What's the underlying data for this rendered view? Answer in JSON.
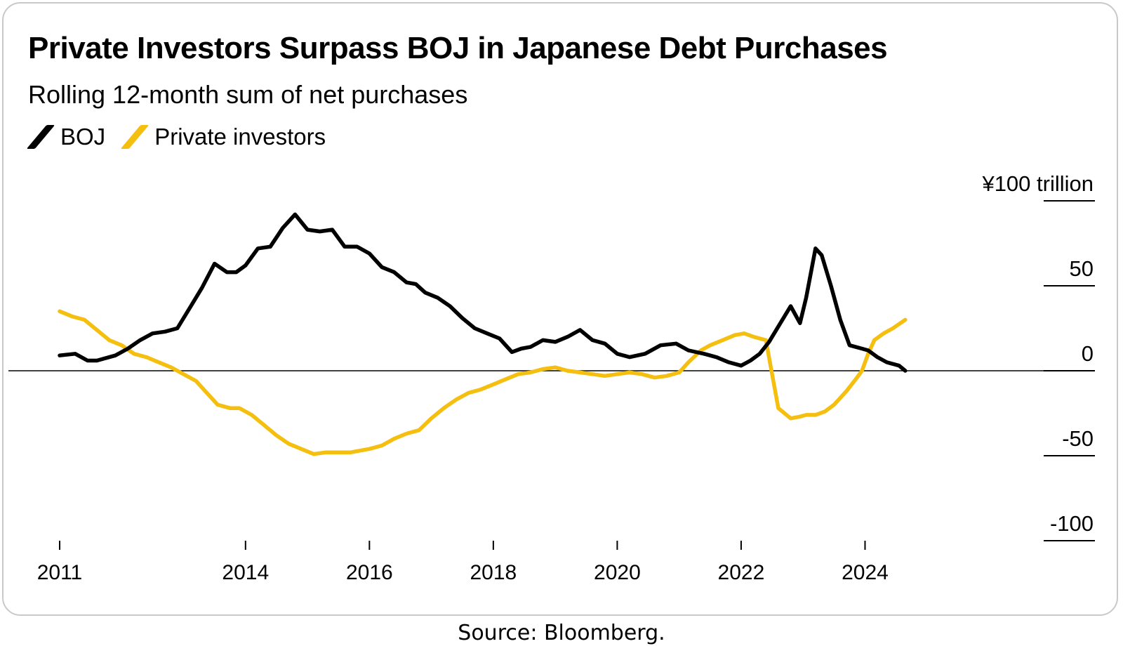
{
  "title": "Private Investors Surpass BOJ in Japanese Debt Purchases",
  "subtitle": "Rolling 12-month sum of net purchases",
  "source": "Source: Bloomberg.",
  "colors": {
    "boj": "#000000",
    "private": "#f5bf0f",
    "grid": "#000000",
    "border": "#c9c9c9"
  },
  "chart_data": {
    "type": "line",
    "title": "Private Investors Surpass BOJ in Japanese Debt Purchases",
    "subtitle": "Rolling 12-month sum of net purchases",
    "legend_position": "top-left",
    "yunit_label": "¥100 trillion",
    "ylim": [
      -100,
      100
    ],
    "yticks": [
      100,
      50,
      0,
      -50,
      -100
    ],
    "ytick_labels": [
      "¥100 trillion",
      "50",
      "0",
      "-50",
      "-100"
    ],
    "xlim": [
      2011.0,
      2026.0
    ],
    "xticks": [
      2011,
      2014,
      2016,
      2018,
      2020,
      2022,
      2024
    ],
    "xtick_labels": [
      "2011",
      "2014",
      "2016",
      "2018",
      "2020",
      "2022",
      "2024"
    ],
    "grid": "horizontal ticks at right only; zero baseline",
    "series": [
      {
        "name": "BOJ",
        "color": "#000000",
        "x": [
          2011.0,
          2011.25,
          2011.45,
          2011.6,
          2011.9,
          2012.1,
          2012.3,
          2012.5,
          2012.7,
          2012.9,
          2013.1,
          2013.3,
          2013.5,
          2013.7,
          2013.85,
          2014.0,
          2014.2,
          2014.4,
          2014.6,
          2014.8,
          2015.0,
          2015.2,
          2015.4,
          2015.6,
          2015.8,
          2016.0,
          2016.2,
          2016.4,
          2016.6,
          2016.75,
          2016.9,
          2017.1,
          2017.3,
          2017.5,
          2017.7,
          2017.9,
          2018.1,
          2018.3,
          2018.45,
          2018.6,
          2018.8,
          2019.0,
          2019.2,
          2019.4,
          2019.6,
          2019.8,
          2020.0,
          2020.2,
          2020.45,
          2020.7,
          2020.95,
          2021.15,
          2021.4,
          2021.6,
          2021.8,
          2022.0,
          2022.15,
          2022.3,
          2022.45,
          2022.6,
          2022.8,
          2022.95,
          2023.05,
          2023.2,
          2023.3,
          2023.45,
          2023.6,
          2023.75,
          2023.95,
          2024.05,
          2024.2,
          2024.35,
          2024.55,
          2024.65
        ],
        "y": [
          9,
          10,
          6,
          6,
          9,
          13,
          18,
          22,
          23,
          25,
          37,
          49,
          63,
          58,
          58,
          62,
          72,
          73,
          84,
          92,
          83,
          82,
          83,
          73,
          73,
          69,
          61,
          58,
          52,
          51,
          46,
          43,
          38,
          31,
          25,
          22,
          19,
          11,
          13,
          14,
          18,
          17,
          20,
          24,
          18,
          16,
          10,
          8,
          10,
          15,
          16,
          12,
          10,
          8,
          5,
          3,
          6,
          10,
          17,
          26,
          38,
          28,
          43,
          72,
          68,
          50,
          30,
          15,
          13,
          12,
          8,
          5,
          3,
          0
        ]
      },
      {
        "name": "Private investors",
        "color": "#f5bf0f",
        "x": [
          2011.0,
          2011.2,
          2011.4,
          2011.6,
          2011.8,
          2012.0,
          2012.2,
          2012.4,
          2012.6,
          2012.8,
          2013.0,
          2013.2,
          2013.35,
          2013.55,
          2013.75,
          2013.9,
          2014.1,
          2014.3,
          2014.5,
          2014.7,
          2014.9,
          2015.1,
          2015.3,
          2015.5,
          2015.7,
          2015.85,
          2016.0,
          2016.2,
          2016.4,
          2016.6,
          2016.8,
          2017.0,
          2017.2,
          2017.4,
          2017.6,
          2017.8,
          2018.0,
          2018.2,
          2018.4,
          2018.6,
          2018.8,
          2019.0,
          2019.2,
          2019.4,
          2019.6,
          2019.8,
          2020.0,
          2020.2,
          2020.4,
          2020.6,
          2020.8,
          2021.0,
          2021.15,
          2021.35,
          2021.5,
          2021.7,
          2021.9,
          2022.05,
          2022.2,
          2022.4,
          2022.6,
          2022.8,
          2022.95,
          2023.05,
          2023.2,
          2023.35,
          2023.5,
          2023.7,
          2023.85,
          2023.95,
          2024.05,
          2024.15,
          2024.3,
          2024.45,
          2024.65
        ],
        "y": [
          35,
          32,
          30,
          24,
          18,
          15,
          10,
          8,
          5,
          2,
          -2,
          -6,
          -12,
          -20,
          -22,
          -22,
          -26,
          -32,
          -38,
          -43,
          -46,
          -49,
          -48,
          -48,
          -48,
          -47,
          -46,
          -44,
          -40,
          -37,
          -35,
          -28,
          -22,
          -17,
          -13,
          -11,
          -8,
          -5,
          -2,
          -1,
          1,
          2,
          0,
          -1,
          -2,
          -3,
          -2,
          -1,
          -2,
          -4,
          -3,
          -1,
          5,
          12,
          15,
          18,
          21,
          22,
          20,
          18,
          -22,
          -28,
          -27,
          -26,
          -26,
          -24,
          -20,
          -12,
          -5,
          0,
          10,
          18,
          22,
          25,
          30
        ]
      }
    ]
  }
}
